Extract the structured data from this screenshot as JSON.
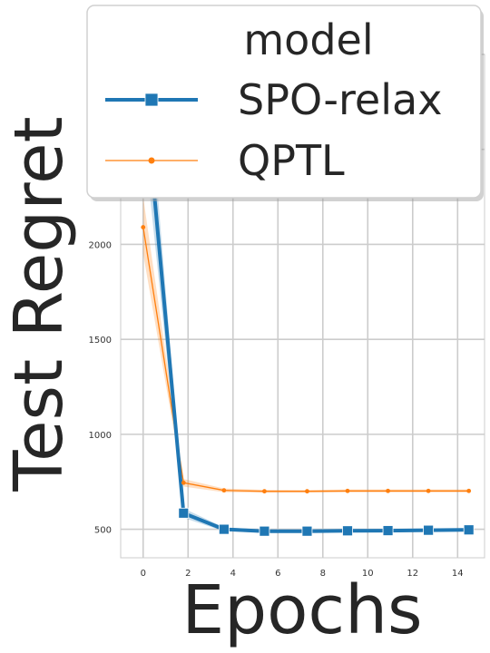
{
  "chart_data": {
    "type": "line",
    "xlabel": "Epochs",
    "ylabel": "Test Regret",
    "xlim": [
      -1,
      15.2
    ],
    "ylim": [
      350,
      3000
    ],
    "xticks": [
      0,
      2,
      4,
      6,
      8,
      10,
      12,
      14
    ],
    "yticks": [
      500,
      1000,
      1500,
      2000,
      2500,
      3000
    ],
    "ytick_labels_visible": [
      "500",
      "1000",
      "1500",
      "2000"
    ],
    "grid": true,
    "legend": {
      "title": "model",
      "placement": "top-left"
    },
    "series": [
      {
        "name": "SPO-relax",
        "color": "#1f77b4",
        "marker": "square",
        "x": [
          0,
          1.8,
          3.6,
          5.4,
          7.3,
          9.1,
          10.9,
          12.7,
          14.5
        ],
        "y": [
          2900,
          585,
          500,
          490,
          490,
          492,
          493,
          495,
          497
        ],
        "band": [
          [
            2600,
            3200
          ],
          [
            560,
            610
          ],
          [
            490,
            510
          ],
          [
            482,
            498
          ],
          [
            483,
            497
          ],
          [
            485,
            499
          ],
          [
            486,
            500
          ],
          [
            488,
            502
          ],
          [
            490,
            504
          ]
        ]
      },
      {
        "name": "QPTL",
        "color": "#ff7f0e",
        "marker": "circle",
        "x": [
          0,
          1.8,
          3.6,
          5.4,
          7.3,
          9.1,
          10.9,
          12.7,
          14.5
        ],
        "y": [
          2090,
          745,
          705,
          700,
          700,
          702,
          702,
          702,
          702
        ],
        "band": [
          [
            1950,
            2250
          ],
          [
            725,
            765
          ],
          [
            695,
            715
          ],
          [
            692,
            708
          ],
          [
            693,
            707
          ],
          [
            694,
            710
          ],
          [
            694,
            710
          ],
          [
            694,
            710
          ],
          [
            694,
            710
          ]
        ]
      }
    ]
  }
}
